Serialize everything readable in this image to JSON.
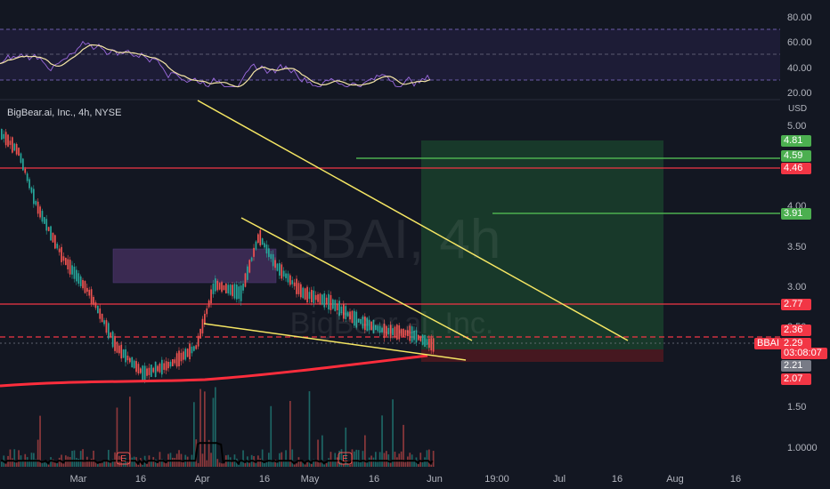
{
  "header": {
    "symbol_line": "BigBear.ai, Inc., 4h, NYSE",
    "currency": "USD"
  },
  "watermark": {
    "ticker": "BBAI, 4h",
    "company": "BigBear.ai, Inc."
  },
  "colors": {
    "bg": "#131722",
    "up": "#26a69a",
    "down": "#ef5350",
    "trend": "#f5e663",
    "level_red": "#f23645",
    "level_green": "#4caf50",
    "ma": "#ff2d3c",
    "rsi": "#f5e6a6",
    "rsi_band": "#7e57c2"
  },
  "rsi": {
    "ticks": [
      "80.00",
      "60.00",
      "40.00",
      "20.00"
    ]
  },
  "price_axis": {
    "ticks": [
      "5.00",
      "4.00",
      "3.50",
      "3.00",
      "2.50",
      "1.50",
      "1.0000"
    ]
  },
  "time_axis": {
    "ticks": [
      "Mar",
      "16",
      "Apr",
      "16",
      "May",
      "16",
      "Jun",
      "19:00",
      "Jul",
      "16",
      "Aug",
      "16"
    ]
  },
  "price_tags": [
    {
      "label": "4.81",
      "color": "#4caf50"
    },
    {
      "label": "4.59",
      "color": "#4caf50"
    },
    {
      "label": "4.46",
      "color": "#f23645"
    },
    {
      "label": "3.91",
      "color": "#4caf50"
    },
    {
      "label": "2.77",
      "color": "#f23645"
    },
    {
      "label": "2.36",
      "color": "#f23645"
    },
    {
      "label": "2.29",
      "color": "#f23645"
    },
    {
      "label": "03:08:07",
      "color": "#f23645"
    },
    {
      "label": "2.21",
      "color": "#787b86"
    },
    {
      "label": "2.07",
      "color": "#f23645"
    }
  ],
  "ticker_badge": "BBAI",
  "earnings_marker": "E"
}
